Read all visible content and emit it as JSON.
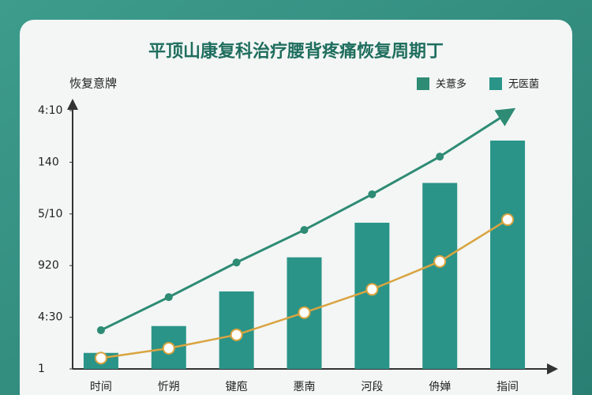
{
  "chart_data": {
    "type": "bar",
    "title": "平顶山康复科治疗腰背疼痛恢复周期丁",
    "y_label": "恢复意牌",
    "categories": [
      "时间",
      "忻朔",
      "键庖",
      "悪南",
      "河段",
      "侜婵",
      "指间"
    ],
    "ylim": [
      1,
      6
    ],
    "yticks": [
      1,
      {
        "value": 2,
        "label": "4:30"
      },
      {
        "value": 3,
        "label": "920"
      },
      {
        "value": 4,
        "label": "5/10"
      },
      {
        "value": 5,
        "label": "140"
      },
      {
        "value": 6,
        "label": "4:10"
      }
    ],
    "series": [
      {
        "name": "关薏多",
        "type": "line",
        "color": "#2e8b74",
        "values": [
          1.75,
          2.39,
          3.06,
          3.69,
          4.38,
          5.11,
          5.95
        ]
      },
      {
        "name": "无医菌",
        "type": "bar",
        "color": "#2a9488",
        "values": [
          1.31,
          1.83,
          2.5,
          3.16,
          3.83,
          4.6,
          5.42
        ]
      },
      {
        "type": "curve",
        "color": "#d9a441",
        "values": [
          1.21,
          1.4,
          1.66,
          2.09,
          2.54,
          3.08,
          3.89
        ]
      }
    ]
  }
}
